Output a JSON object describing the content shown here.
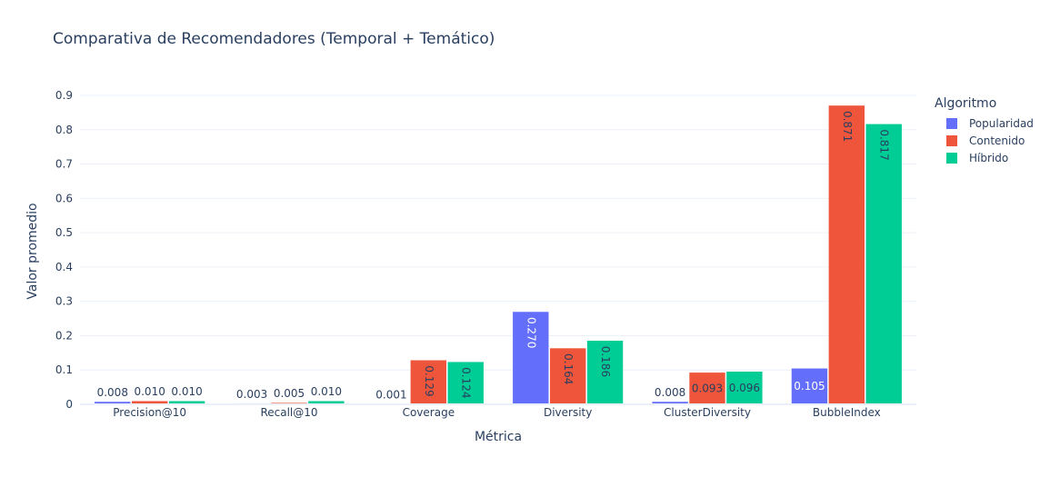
{
  "chart_data": {
    "type": "bar",
    "title": "Comparativa de Recomendadores (Temporal + Temático)",
    "xlabel": "Métrica",
    "ylabel": "Valor promedio",
    "ylim": [
      0,
      0.9
    ],
    "yticks": [
      0,
      0.1,
      0.2,
      0.3,
      0.4,
      0.5,
      0.6,
      0.7,
      0.8,
      0.9
    ],
    "ytick_labels": [
      "0",
      "0.1",
      "0.2",
      "0.3",
      "0.4",
      "0.5",
      "0.6",
      "0.7",
      "0.8",
      "0.9"
    ],
    "grid": true,
    "categories": [
      "Precision@10",
      "Recall@10",
      "Coverage",
      "Diversity",
      "ClusterDiversity",
      "BubbleIndex"
    ],
    "legend_title": "Algoritmo",
    "legend_position": "top-right",
    "series": [
      {
        "name": "Popularidad",
        "color": "#636efa",
        "values": [
          0.008,
          0.003,
          0.001,
          0.27,
          0.008,
          0.105
        ],
        "labels": [
          "0.008",
          "0.003",
          "0.001",
          "0.270",
          "0.008",
          "0.105"
        ]
      },
      {
        "name": "Contenido",
        "color": "#ef553b",
        "values": [
          0.01,
          0.005,
          0.129,
          0.164,
          0.093,
          0.871
        ],
        "labels": [
          "0.010",
          "0.005",
          "0.129",
          "0.164",
          "0.093",
          "0.871"
        ]
      },
      {
        "name": "Híbrido",
        "color": "#00cc96",
        "values": [
          0.01,
          0.01,
          0.124,
          0.186,
          0.096,
          0.817
        ],
        "labels": [
          "0.010",
          "0.010",
          "0.124",
          "0.186",
          "0.096",
          "0.817"
        ]
      }
    ]
  }
}
